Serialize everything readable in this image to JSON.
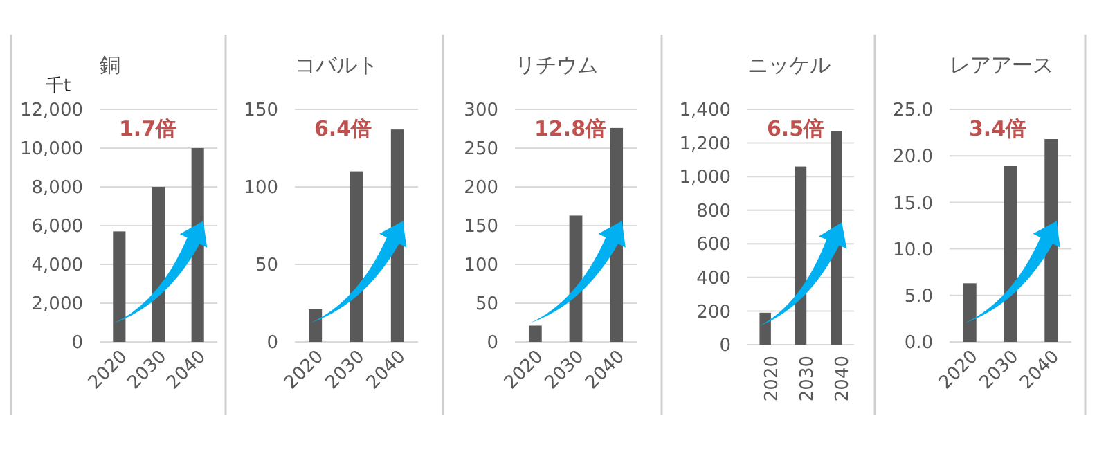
{
  "chart_data": [
    {
      "type": "bar",
      "title": "銅",
      "ylabel": "千t",
      "categories": [
        "2020",
        "2030",
        "2040"
      ],
      "values": [
        5700,
        8000,
        10000
      ],
      "color": "#595959",
      "ylim": [
        0,
        12000
      ],
      "yticks": [
        0,
        {
          "value": 2000,
          "label": "2,000"
        },
        {
          "value": 4000,
          "label": "4,000"
        },
        {
          "value": 6000,
          "label": "6,000"
        },
        {
          "value": 8000,
          "label": "8,000"
        },
        {
          "value": 10000,
          "label": "10,000"
        },
        {
          "value": 12000,
          "label": "12,000"
        }
      ],
      "grid": "y",
      "annotations": [
        "1.7倍"
      ]
    },
    {
      "type": "bar",
      "title": "コバルト",
      "categories": [
        "2020",
        "2030",
        "2040"
      ],
      "values": [
        21,
        110,
        137
      ],
      "color": "#595959",
      "ylim": [
        0,
        150
      ],
      "yticks": [
        0,
        50,
        100,
        150
      ],
      "grid": "y",
      "annotations": [
        "6.4倍"
      ]
    },
    {
      "type": "bar",
      "title": "リチウム",
      "categories": [
        "2020",
        "2030",
        "2040"
      ],
      "values": [
        21,
        163,
        276
      ],
      "color": "#595959",
      "ylim": [
        0,
        300
      ],
      "yticks": [
        0,
        50,
        100,
        150,
        200,
        250,
        300
      ],
      "grid": "y",
      "annotations": [
        "12.8倍"
      ]
    },
    {
      "type": "bar",
      "title": "ニッケル",
      "categories": [
        "2020",
        "2030",
        "2040"
      ],
      "values": [
        190,
        1060,
        1270
      ],
      "color": "#595959",
      "ylim": [
        0,
        1400
      ],
      "yticks": [
        0,
        200,
        400,
        600,
        800,
        {
          "value": 1000,
          "label": "1,000"
        },
        {
          "value": 1200,
          "label": "1,200"
        },
        {
          "value": 1400,
          "label": "1,400"
        }
      ],
      "grid": "y",
      "annotations": [
        "6.5倍"
      ]
    },
    {
      "type": "bar",
      "title": "レアアース",
      "categories": [
        "2020",
        "2030",
        "2040"
      ],
      "values": [
        6.3,
        18.9,
        21.8
      ],
      "color": "#595959",
      "ylim": [
        0,
        25
      ],
      "yticks": [
        {
          "value": 0,
          "label": "0.0"
        },
        {
          "value": 5,
          "label": "5.0"
        },
        {
          "value": 10,
          "label": "10.0"
        },
        {
          "value": 15,
          "label": "15.0"
        },
        {
          "value": 20,
          "label": "20.0"
        },
        {
          "value": 25,
          "label": "25.0"
        }
      ],
      "grid": "y",
      "annotations": [
        "3.4倍"
      ]
    }
  ]
}
